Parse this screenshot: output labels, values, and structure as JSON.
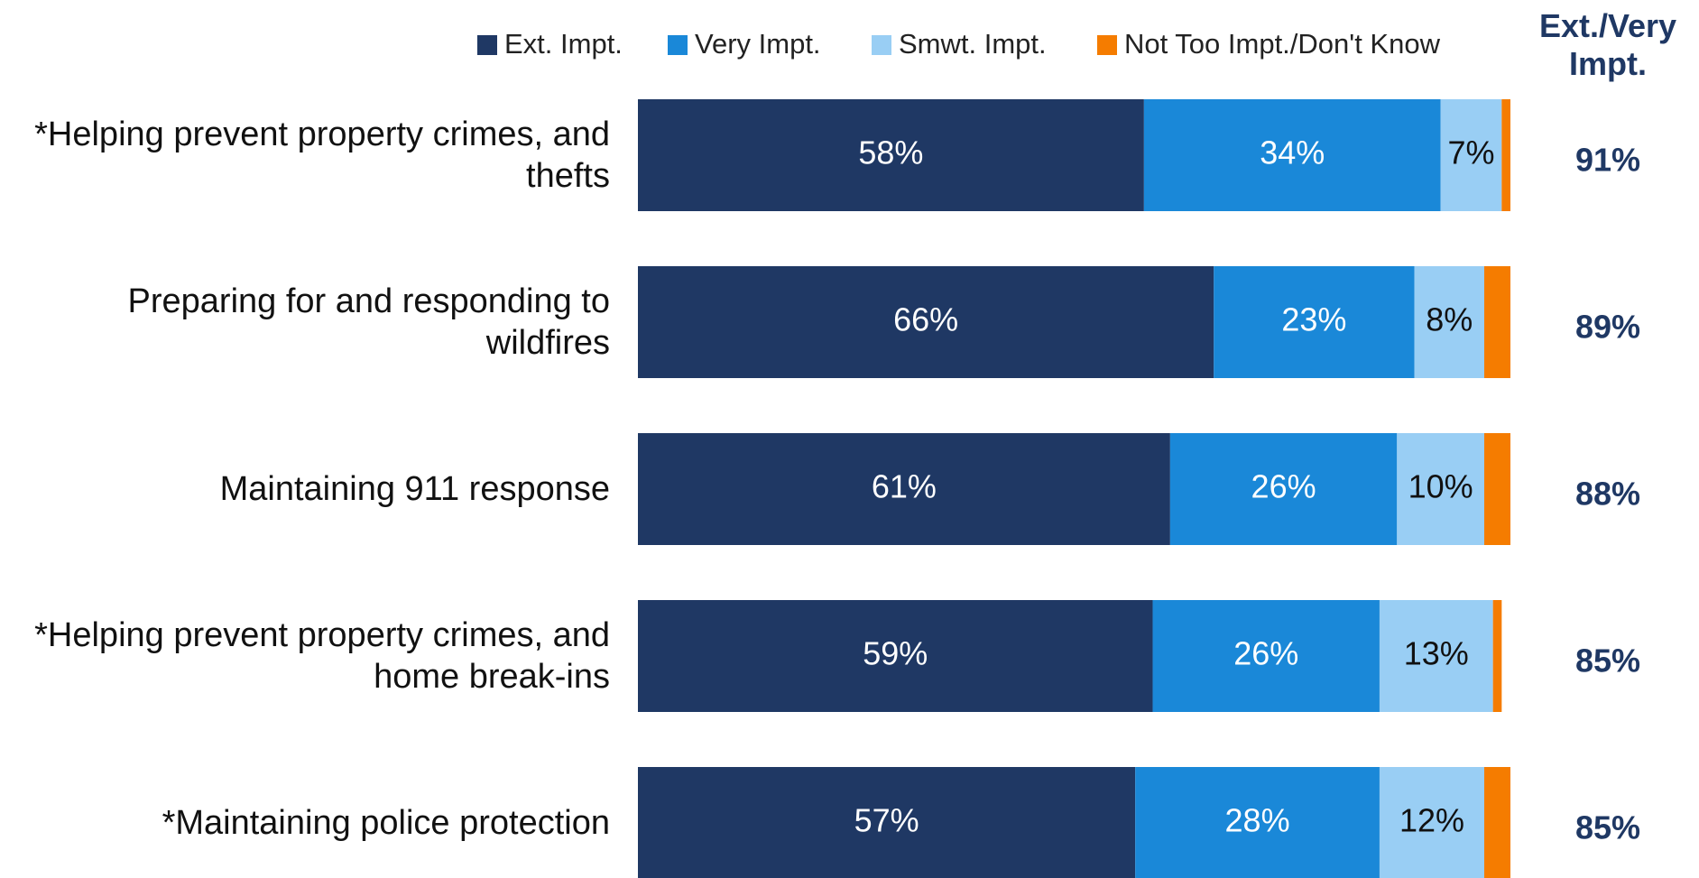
{
  "chart_data": {
    "type": "stacked-bar-horizontal",
    "categories": [
      "*Helping prevent property crimes, and thefts",
      "Preparing for and responding to wildfires",
      "Maintaining 911 response",
      "*Helping prevent property crimes, and home break-ins",
      "*Maintaining police protection"
    ],
    "series": [
      {
        "name": "Ext. Impt.",
        "color": "#1f3864",
        "values": [
          58,
          66,
          61,
          59,
          57
        ],
        "value_labels": [
          "58%",
          "66%",
          "61%",
          "59%",
          "57%"
        ]
      },
      {
        "name": "Very Impt.",
        "color": "#1a88d8",
        "values": [
          34,
          23,
          26,
          26,
          28
        ],
        "value_labels": [
          "34%",
          "23%",
          "26%",
          "26%",
          "28%"
        ]
      },
      {
        "name": "Smwt. Impt.",
        "color": "#99cef4",
        "values": [
          7,
          8,
          10,
          13,
          12
        ],
        "value_labels": [
          "7%",
          "8%",
          "10%",
          "13%",
          "12%"
        ]
      },
      {
        "name": "Not Too Impt./Don't Know",
        "color": "#f57c00",
        "values": [
          1,
          3,
          3,
          1,
          3
        ]
      }
    ],
    "xlim": [
      0,
      100
    ],
    "net": {
      "title": "Ext./Very Impt.",
      "values": [
        91,
        89,
        88,
        85,
        85
      ],
      "value_labels": [
        "91%",
        "89%",
        "88%",
        "85%",
        "85%"
      ],
      "color": "#1f3864"
    },
    "legend": "top"
  }
}
